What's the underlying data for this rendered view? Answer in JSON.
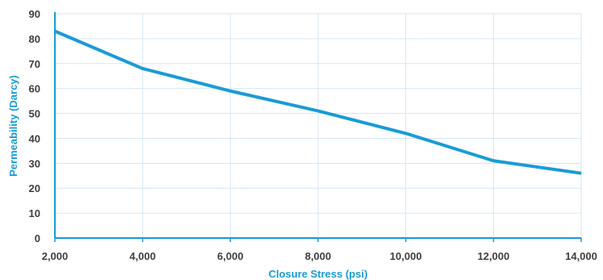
{
  "chart_data": {
    "type": "line",
    "title": "",
    "xlabel": "Closure Stress (psi)",
    "ylabel": "Permeability (Darcy)",
    "x": [
      2000,
      4000,
      6000,
      8000,
      10000,
      12000,
      14000
    ],
    "x_tick_labels": [
      "2,000",
      "4,000",
      "6,000",
      "8,000",
      "10,000",
      "12,000",
      "14,000"
    ],
    "y_tick_labels": [
      "0",
      "10",
      "20",
      "30",
      "40",
      "50",
      "60",
      "70",
      "80",
      "90"
    ],
    "series": [
      {
        "values": [
          83,
          68,
          59,
          51,
          42,
          31,
          26
        ]
      }
    ],
    "xlim": [
      2000,
      14000
    ],
    "ylim": [
      0,
      90
    ],
    "grid": true,
    "legend": "none",
    "colors": {
      "line": "#1a9bd7",
      "axis_title": "#1a9bd7",
      "axis_line": "#1a9bd7",
      "grid": "#d6e6f2",
      "tick_text": "#404040"
    }
  }
}
